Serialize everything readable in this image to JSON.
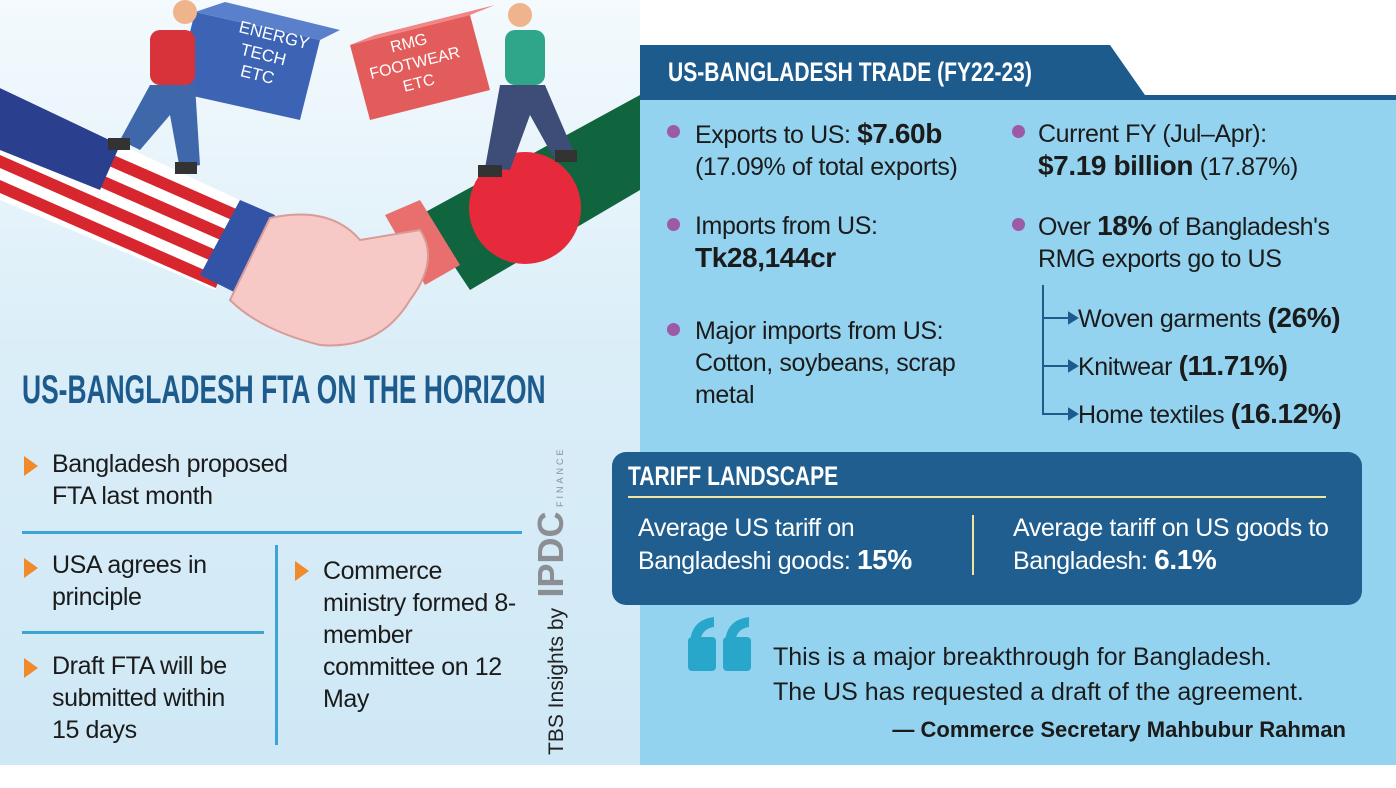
{
  "illustration": {
    "left_box": [
      "ENERGY",
      "TECH",
      "ETC"
    ],
    "right_box": [
      "RMG",
      "FOOTWEAR",
      "ETC"
    ]
  },
  "headline": "US-BANGLADESH FTA ON THE HORIZON",
  "left_points": [
    "Bangladesh proposed FTA last month",
    "USA agrees in principle",
    "Draft FTA will be submitted within 15 days",
    "Commerce ministry formed 8-member committee on 12 May"
  ],
  "credit": {
    "text": "TBS Insights by",
    "logo": "IPDC",
    "logo_sub": "FINANCE"
  },
  "trade": {
    "title": "US-BANGLADESH TRADE (FY22-23)",
    "items": [
      {
        "label": "Exports to US:",
        "value": "$7.60b",
        "note": "(17.09% of total exports)"
      },
      {
        "label": "Imports from US:",
        "value": "Tk28,144cr"
      },
      {
        "label": "Major imports from US: Cotton, soybeans, scrap metal"
      },
      {
        "label": "Current FY (Jul–Apr):",
        "value": "$7.19 billion",
        "note": "(17.87%)"
      },
      {
        "prefix": "Over",
        "value": "18%",
        "label": "of Bangladesh's RMG exports go to US"
      }
    ],
    "breakdown": [
      {
        "label": "Woven garments",
        "value": "(26%)"
      },
      {
        "label": "Knitwear",
        "value": "(11.71%)"
      },
      {
        "label": "Home textiles",
        "value": "(16.12%)"
      }
    ]
  },
  "tariff": {
    "title": "TARIFF LANDSCAPE",
    "cells": [
      {
        "label": "Average US tariff on Bangladeshi goods:",
        "value": "15%"
      },
      {
        "label": "Average tariff on US goods to Bangladesh:",
        "value": "6.1%"
      }
    ]
  },
  "quote": {
    "lines": [
      "This is a major breakthrough for Bangladesh.",
      "The US has requested a draft of the agreement."
    ],
    "attribution": "— Commerce Secretary Mahbubur Rahman"
  }
}
